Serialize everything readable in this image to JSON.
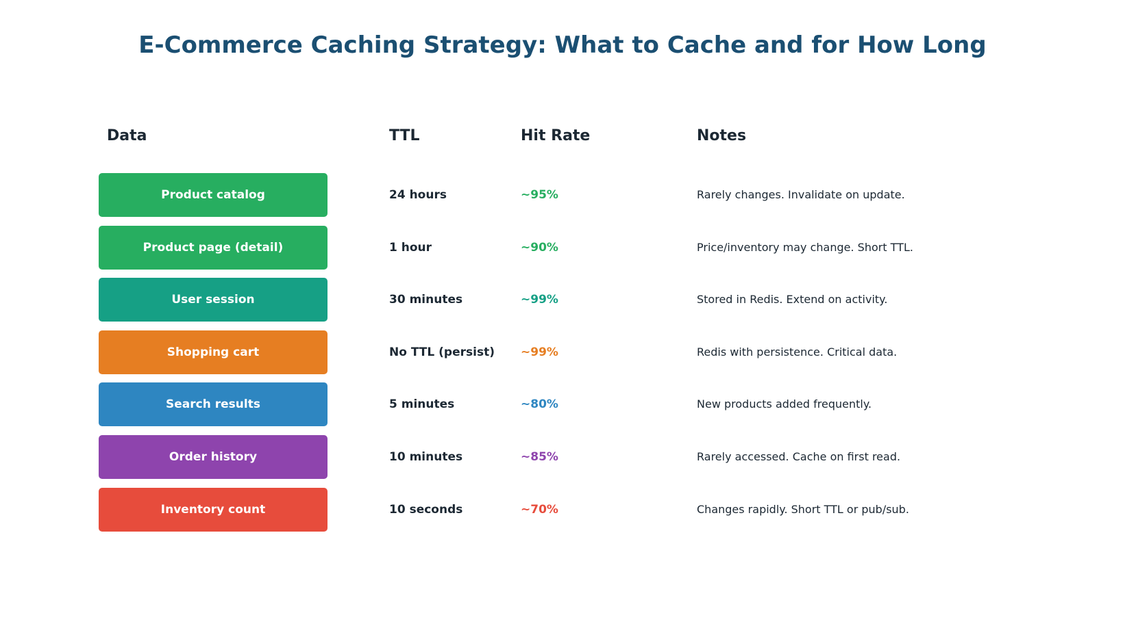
{
  "title": "E-Commerce Caching Strategy: What to Cache and for How Long",
  "headers": {
    "data": "Data",
    "ttl": "TTL",
    "hit_rate": "Hit Rate",
    "notes": "Notes"
  },
  "rows": [
    {
      "data": "Product catalog",
      "ttl": "24 hours",
      "hit_rate": "~95%",
      "notes": "Rarely changes. Invalidate on update.",
      "color": "#27ae60"
    },
    {
      "data": "Product page (detail)",
      "ttl": "1 hour",
      "hit_rate": "~90%",
      "notes": "Price/inventory may change. Short TTL.",
      "color": "#27ae60"
    },
    {
      "data": "User session",
      "ttl": "30 minutes",
      "hit_rate": "~99%",
      "notes": "Stored in Redis. Extend on activity.",
      "color": "#16a085"
    },
    {
      "data": "Shopping cart",
      "ttl": "No TTL (persist)",
      "hit_rate": "~99%",
      "notes": "Redis with persistence. Critical data.",
      "color": "#e67e22"
    },
    {
      "data": "Search results",
      "ttl": "5 minutes",
      "hit_rate": "~80%",
      "notes": "New products added frequently.",
      "color": "#2e86c1"
    },
    {
      "data": "Order history",
      "ttl": "10 minutes",
      "hit_rate": "~85%",
      "notes": "Rarely accessed. Cache on first read.",
      "color": "#8e44ad"
    },
    {
      "data": "Inventory count",
      "ttl": "10 seconds",
      "hit_rate": "~70%",
      "notes": "Changes rapidly. Short TTL or pub/sub.",
      "color": "#e74c3c"
    }
  ]
}
